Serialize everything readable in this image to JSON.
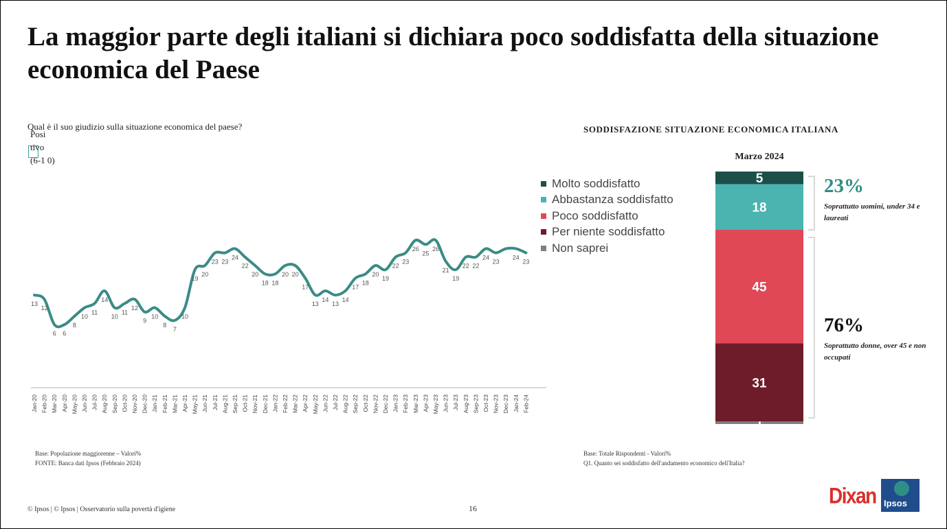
{
  "title": "La maggior parte degli italiani si dichiara poco soddisfatta della situazione economica del Paese",
  "left_panel": {
    "question": "Qual è il suo giudizio sulla situazione economica del paese?",
    "y_label": "Posi tivo (6-1 0)",
    "base_note": "Base: Popolazione maggiorenne – Valori%",
    "source_note": "FONTE: Banca dati Ipsos (Febbraio 2024)"
  },
  "right_panel": {
    "base_note": "Base: Totale Rispondenti - Valori%",
    "question_note": "Q1. Quanto sei soddisfatto dell'andamento economico dell'Italia?",
    "satisfied": {
      "pct": "23%",
      "note": "Soprattutto uomini, under 34 e laureati",
      "color": "#2f8f86"
    },
    "unsatisfied": {
      "pct": "76%",
      "note": "Soprattutto donne, over 45 e non occupati",
      "color": "#111111"
    }
  },
  "footer": {
    "copyright": "© Ipsos | © Ipsos | Osservatorio sulla povertà d'igiene",
    "page_number": "16",
    "brand_dixan": "Dixan",
    "brand_ipsos": "Ipsos"
  },
  "chart_data": [
    {
      "type": "line",
      "line_color": "#3a8c85",
      "x": [
        "Jan-20",
        "Feb-20",
        "Mar-20",
        "Apr-20",
        "May-20",
        "Jun-20",
        "Jul-20",
        "Aug-20",
        "Sep-20",
        "Oct-20",
        "Nov-20",
        "Dec-20",
        "Jan-21",
        "Feb-21",
        "Mar-21",
        "Apr-21",
        "May-21",
        "Jun-21",
        "Jul-21",
        "Aug-21",
        "Sep-21",
        "Oct-21",
        "Nov-21",
        "Dec-21",
        "Jan-22",
        "Feb-22",
        "Mar-22",
        "Apr-22",
        "May-22",
        "Jun-22",
        "Jul-22",
        "Aug-22",
        "Sep-22",
        "Oct-22",
        "Nov-22",
        "Dec-22",
        "Jan-23",
        "Feb-23",
        "Mar-23",
        "Apr-23",
        "May-23",
        "Jun-23",
        "Jul-23",
        "Aug-23",
        "Sep-23",
        "Oct-23",
        "Nov-23",
        "Dec-23",
        "Jan-24",
        "Feb-24"
      ],
      "series": [
        {
          "values": [
            13,
            12,
            6,
            6,
            8,
            10,
            11,
            14,
            10,
            11,
            12,
            9,
            10,
            8,
            7,
            10,
            19,
            20,
            23,
            23,
            24,
            22,
            20,
            18,
            18,
            20,
            20,
            17,
            13,
            14,
            13,
            14,
            17,
            18,
            20,
            19,
            22,
            23,
            26,
            25,
            26,
            21,
            19,
            22,
            22,
            24,
            23,
            24,
            24,
            23
          ],
          "labels": [
            "13",
            "12",
            "6",
            "6",
            "8",
            "10",
            "11",
            "14",
            "10",
            "11",
            "12",
            "9",
            "10",
            "8",
            "7",
            "10",
            "19",
            "20",
            "23",
            "23",
            "24",
            "22",
            "20",
            "18",
            "18",
            "20",
            "20",
            "17",
            "13",
            "14",
            "13",
            "14",
            "17",
            "18",
            "20",
            "19",
            "22",
            "23",
            "26",
            "25",
            "26",
            "21",
            "19",
            "22",
            "22",
            "24",
            "23",
            "",
            "24",
            "23"
          ]
        }
      ],
      "xlabel": "",
      "ylabel": "Positivo (6-10)"
    },
    {
      "type": "bar",
      "stacked": true,
      "title": "SODDISFAZIONE SITUAZIONE ECONOMICA ITALIANA",
      "categories": [
        "Marzo 2024"
      ],
      "series": [
        {
          "name": "Non saprei",
          "values": [
            1
          ],
          "color": "#7f7f7f"
        },
        {
          "name": "Per niente soddisfatto",
          "values": [
            31
          ],
          "color": "#6e1c2a"
        },
        {
          "name": "Poco soddisfatto",
          "values": [
            45
          ],
          "color": "#e04856"
        },
        {
          "name": "Abbastanza soddisfatto",
          "values": [
            18
          ],
          "color": "#4bb3b0"
        },
        {
          "name": "Molto soddisfatto",
          "values": [
            5
          ],
          "color": "#1d4f4a"
        }
      ],
      "legend_position": "left"
    }
  ]
}
